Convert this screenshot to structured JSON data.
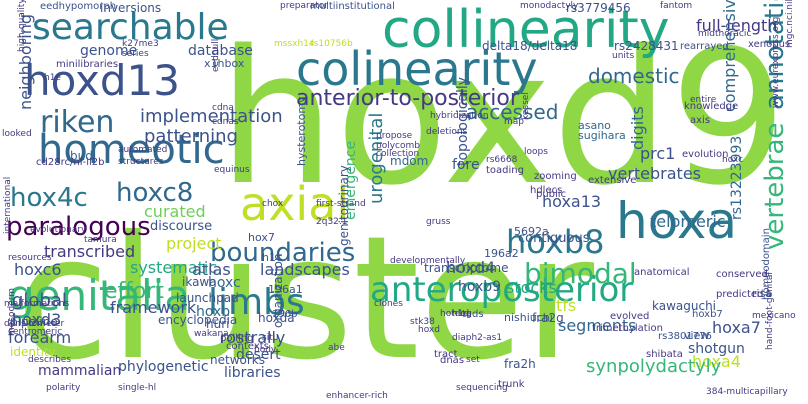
{
  "words": [
    {
      "text": "cluster",
      "color": "#8fd744"
    },
    {
      "text": "hoxd9",
      "color": "#8fd744"
    },
    {
      "text": "collinearity",
      "color": "#22a884"
    },
    {
      "text": "searchable",
      "color": "#2a788e"
    },
    {
      "text": "colinearity",
      "color": "#2a788e"
    },
    {
      "text": "hoxd13",
      "color": "#3b528b"
    },
    {
      "text": "homeotic",
      "color": "#31688e"
    },
    {
      "text": "riken",
      "color": "#31688e"
    },
    {
      "text": "hox4c",
      "color": "#2a788e"
    },
    {
      "text": "hoxc8",
      "color": "#31688e"
    },
    {
      "text": "hoxa",
      "color": "#2a788e"
    },
    {
      "text": "axial",
      "color": "#bddf26"
    },
    {
      "text": "paralogous",
      "color": "#440154"
    },
    {
      "text": "hoxb8",
      "color": "#2a788e"
    },
    {
      "text": "genitalia",
      "color": "#35b779"
    },
    {
      "text": "limbs",
      "color": "#2a788e"
    },
    {
      "text": "anteroposterior",
      "color": "#22a884"
    },
    {
      "text": "vertebrae",
      "color": "#35b779"
    },
    {
      "text": "annotation",
      "color": "#2a788e"
    },
    {
      "text": "bimodal",
      "color": "#35b779"
    },
    {
      "text": "boundaries",
      "color": "#31688e"
    },
    {
      "text": "anterior-to-posterior",
      "color": "#443983"
    },
    {
      "text": "accessed",
      "color": "#31688e"
    },
    {
      "text": "domestic",
      "color": "#31688e"
    },
    {
      "text": "implementation",
      "color": "#3b528b"
    },
    {
      "text": "patterning",
      "color": "#3b528b"
    },
    {
      "text": "database",
      "color": "#3b528b"
    },
    {
      "text": "genome",
      "color": "#3b528b"
    },
    {
      "text": "full-length",
      "color": "#443983"
    },
    {
      "text": "neighboring",
      "color": "#3b528b"
    },
    {
      "text": "landscapes",
      "color": "#3b528b"
    },
    {
      "text": "transcribed",
      "color": "#443983"
    },
    {
      "text": "project",
      "color": "#bddf26"
    },
    {
      "text": "curated",
      "color": "#6ece58"
    },
    {
      "text": "systematic",
      "color": "#22a884"
    },
    {
      "text": "effort",
      "color": "#35b779"
    },
    {
      "text": "framework",
      "color": "#3b528b"
    },
    {
      "text": "hoxd4",
      "color": "#3b528b"
    },
    {
      "text": "hoxa13",
      "color": "#3b528b"
    },
    {
      "text": "segments",
      "color": "#31688e"
    },
    {
      "text": "stocks",
      "color": "#22a884"
    },
    {
      "text": "tfs",
      "color": "#bddf26"
    },
    {
      "text": "digits",
      "color": "#31688e"
    },
    {
      "text": "vertebrates",
      "color": "#3b528b"
    },
    {
      "text": "telomeric",
      "color": "#31688e"
    },
    {
      "text": "comprehensive",
      "color": "#31688e"
    },
    {
      "text": "prc1",
      "color": "#3b528b"
    },
    {
      "text": "hoxc6",
      "color": "#3b528b"
    },
    {
      "text": "global",
      "color": "#3b528b"
    },
    {
      "text": "hoxd3",
      "color": "#3b528b"
    },
    {
      "text": "forearm",
      "color": "#3b528b"
    },
    {
      "text": "hoxc",
      "color": "#31688e"
    },
    {
      "text": "atlas",
      "color": "#3b528b"
    },
    {
      "text": "hoxb",
      "color": "#31688e"
    },
    {
      "text": "rostrally",
      "color": "#3b528b"
    },
    {
      "text": "hoxb9",
      "color": "#3b528b"
    },
    {
      "text": "hoxa7",
      "color": "#3b528b"
    },
    {
      "text": "hoxa4",
      "color": "#bddf26"
    },
    {
      "text": "shotgun",
      "color": "#3b528b"
    },
    {
      "text": "desert",
      "color": "#3b528b"
    },
    {
      "text": "phylogenetic",
      "color": "#3b528b"
    },
    {
      "text": "synpolydactyly",
      "color": "#35b779"
    },
    {
      "text": "mammalian",
      "color": "#443983"
    },
    {
      "text": "libraries",
      "color": "#3b528b"
    },
    {
      "text": "urogenital",
      "color": "#2a788e"
    },
    {
      "text": "topologically",
      "color": "#3b528b"
    },
    {
      "text": "fore",
      "color": "#3b528b"
    },
    {
      "text": "mdom",
      "color": "#31688e"
    },
    {
      "text": "bud",
      "color": "#31688e"
    },
    {
      "text": "emergence",
      "color": "#35b779"
    },
    {
      "text": "rs13223993",
      "color": "#31688e"
    },
    {
      "text": "rs3779456",
      "color": "#3b528b"
    },
    {
      "text": "rs2428431",
      "color": "#3b528b"
    },
    {
      "text": "delta18/delta18",
      "color": "#3b528b"
    },
    {
      "text": "homeodomain",
      "color": "#3b528b"
    },
    {
      "text": "evolution",
      "color": "#443983"
    },
    {
      "text": "inversions",
      "color": "#3b528b"
    },
    {
      "text": "eedhypomorph",
      "color": "#3b528b"
    },
    {
      "text": "multiinstitutional",
      "color": "#3b528b"
    },
    {
      "text": "x1hbox",
      "color": "#3b528b"
    },
    {
      "text": "minilibraries",
      "color": "#443983"
    },
    {
      "text": "rearrayed",
      "color": "#3b528b"
    },
    {
      "text": "units",
      "color": "#443983"
    },
    {
      "text": "contiguous",
      "color": "#3b528b"
    },
    {
      "text": "discourse",
      "color": "#3b528b"
    },
    {
      "text": "launchpad",
      "color": "#3b528b"
    },
    {
      "text": "ikawa",
      "color": "#3b528b"
    },
    {
      "text": "huri",
      "color": "#3b528b"
    },
    {
      "text": "kawaguchi",
      "color": "#3b528b"
    },
    {
      "text": "encyclopedia",
      "color": "#3b528b"
    },
    {
      "text": "pipeline",
      "color": "#3b528b"
    },
    {
      "text": "identity",
      "color": "#bddf26"
    },
    {
      "text": "networks",
      "color": "#3b528b"
    },
    {
      "text": "organization",
      "color": "#3b528b"
    },
    {
      "text": "hoxda",
      "color": "#3b528b"
    },
    {
      "text": "genitourinary",
      "color": "#3b528b"
    },
    {
      "text": "transcriptome",
      "color": "#3b528b"
    },
    {
      "text": "hysterotomy",
      "color": "#3b528b"
    },
    {
      "text": "sugihara",
      "color": "#31688e"
    },
    {
      "text": "asano",
      "color": "#31688e"
    },
    {
      "text": "5692a",
      "color": "#3b528b"
    },
    {
      "text": "196a2",
      "color": "#3b528b"
    },
    {
      "text": "196a1",
      "color": "#3b528b"
    },
    {
      "text": "196b",
      "color": "#3b528b"
    },
    {
      "text": "hox7",
      "color": "#3b528b"
    },
    {
      "text": "h1c",
      "color": "#3b528b"
    },
    {
      "text": "hoxb7",
      "color": "#3b528b"
    },
    {
      "text": "fra2g",
      "color": "#3b528b"
    },
    {
      "text": "fra2h",
      "color": "#3b528b"
    },
    {
      "text": "rs3801776",
      "color": "#3b528b"
    },
    {
      "text": "tads",
      "color": "#3b528b"
    },
    {
      "text": "risa",
      "color": "#3b528b"
    },
    {
      "text": "conserved",
      "color": "#443983"
    },
    {
      "text": "evolved",
      "color": "#443983"
    },
    {
      "text": "predicted",
      "color": "#443983"
    },
    {
      "text": "shibata",
      "color": "#443983"
    },
    {
      "text": "trimethylation",
      "color": "#443983"
    },
    {
      "text": "nishiuchi",
      "color": "#3b528b"
    },
    {
      "text": "contexts",
      "color": "#443983"
    },
    {
      "text": "polling",
      "color": "#443983"
    },
    {
      "text": "tract",
      "color": "#443983"
    },
    {
      "text": "dnas",
      "color": "#443983"
    },
    {
      "text": "trunk",
      "color": "#443983"
    },
    {
      "text": "hand-foot-genital",
      "color": "#443983"
    },
    {
      "text": "384-multicapillary",
      "color": "#443983"
    },
    {
      "text": "view",
      "color": "#3b528b"
    },
    {
      "text": "anatomical",
      "color": "#443983"
    },
    {
      "text": "extensive",
      "color": "#443983"
    },
    {
      "text": "toading",
      "color": "#443983"
    },
    {
      "text": "hdlecs",
      "color": "#443983"
    },
    {
      "text": "zooming",
      "color": "#443983"
    },
    {
      "text": "public",
      "color": "#443983"
    },
    {
      "text": "knowledge",
      "color": "#443983"
    },
    {
      "text": "axis",
      "color": "#443983"
    },
    {
      "text": "entire",
      "color": "#443983"
    },
    {
      "text": "midthoracic",
      "color": "#443983"
    },
    {
      "text": "xenopus",
      "color": "#443983"
    },
    {
      "text": "monodactyly",
      "color": "#443983"
    },
    {
      "text": "fantom",
      "color": "#443983"
    },
    {
      "text": "preparator",
      "color": "#443983"
    },
    {
      "text": "mgc.nci.nih.gov",
      "color": "#443983"
    },
    {
      "text": "www.eurexpress.org",
      "color": "#443983"
    },
    {
      "text": "hoxc",
      "color": "#443983"
    },
    {
      "text": "hybridization",
      "color": "#443983"
    },
    {
      "text": "deletions",
      "color": "#443983"
    },
    {
      "text": "map",
      "color": "#443983"
    },
    {
      "text": "propose",
      "color": "#443983"
    },
    {
      "text": "polycomb",
      "color": "#443983"
    },
    {
      "text": "collection",
      "color": "#443983"
    },
    {
      "text": "loops",
      "color": "#443983"
    },
    {
      "text": "kessel",
      "color": "#443983"
    },
    {
      "text": "rs6668",
      "color": "#443983"
    },
    {
      "text": "gruss",
      "color": "#443983"
    },
    {
      "text": "first-strand",
      "color": "#443983"
    },
    {
      "text": "2q32.1",
      "color": "#443983"
    },
    {
      "text": "chox",
      "color": "#443983"
    },
    {
      "text": "tamura",
      "color": "#443983"
    },
    {
      "text": "evolutionary",
      "color": "#443983"
    },
    {
      "text": "international",
      "color": "#443983"
    },
    {
      "text": "looked",
      "color": "#443983"
    },
    {
      "text": "cd28rc/nf-il2b",
      "color": "#443983"
    },
    {
      "text": "structures",
      "color": "#443983"
    },
    {
      "text": "automated",
      "color": "#443983"
    },
    {
      "text": "equinus",
      "color": "#443983"
    },
    {
      "text": "cdnas",
      "color": "#443983"
    },
    {
      "text": "cdna",
      "color": "#443983"
    },
    {
      "text": "eednull",
      "color": "#443983"
    },
    {
      "text": "k27me3",
      "color": "#443983"
    },
    {
      "text": "series",
      "color": "#443983"
    },
    {
      "text": "h1e",
      "color": "#443983"
    },
    {
      "text": "high-quality",
      "color": "#443983"
    },
    {
      "text": "rs10756b",
      "color": "#bddf26"
    },
    {
      "text": "mssxh14",
      "color": "#bddf26"
    },
    {
      "text": "developmentally",
      "color": "#443983"
    },
    {
      "text": "malformations",
      "color": "#443983"
    },
    {
      "text": "resources",
      "color": "#443983"
    },
    {
      "text": "mesoderm",
      "color": "#443983"
    },
    {
      "text": "densitometer",
      "color": "#443983"
    },
    {
      "text": "centromeric",
      "color": "#443983"
    },
    {
      "text": "situ",
      "color": "#443983"
    },
    {
      "text": "body",
      "color": "#443983"
    },
    {
      "text": "abe",
      "color": "#443983"
    },
    {
      "text": "clones",
      "color": "#443983"
    },
    {
      "text": "stk38",
      "color": "#443983"
    },
    {
      "text": "hotdog",
      "color": "#443983"
    },
    {
      "text": "h1d",
      "color": "#443983"
    },
    {
      "text": "hoxd",
      "color": "#443983"
    },
    {
      "text": "diaph2-as1",
      "color": "#443983"
    },
    {
      "text": "set",
      "color": "#443983"
    },
    {
      "text": "polarity",
      "color": "#443983"
    },
    {
      "text": "describes",
      "color": "#443983"
    },
    {
      "text": "wakana",
      "color": "#443983"
    },
    {
      "text": "single-hl",
      "color": "#443983"
    },
    {
      "text": "sequencing",
      "color": "#443983"
    },
    {
      "text": "enhancer-rich",
      "color": "#443983"
    },
    {
      "text": "mexicano",
      "color": "#443983"
    }
  ]
}
